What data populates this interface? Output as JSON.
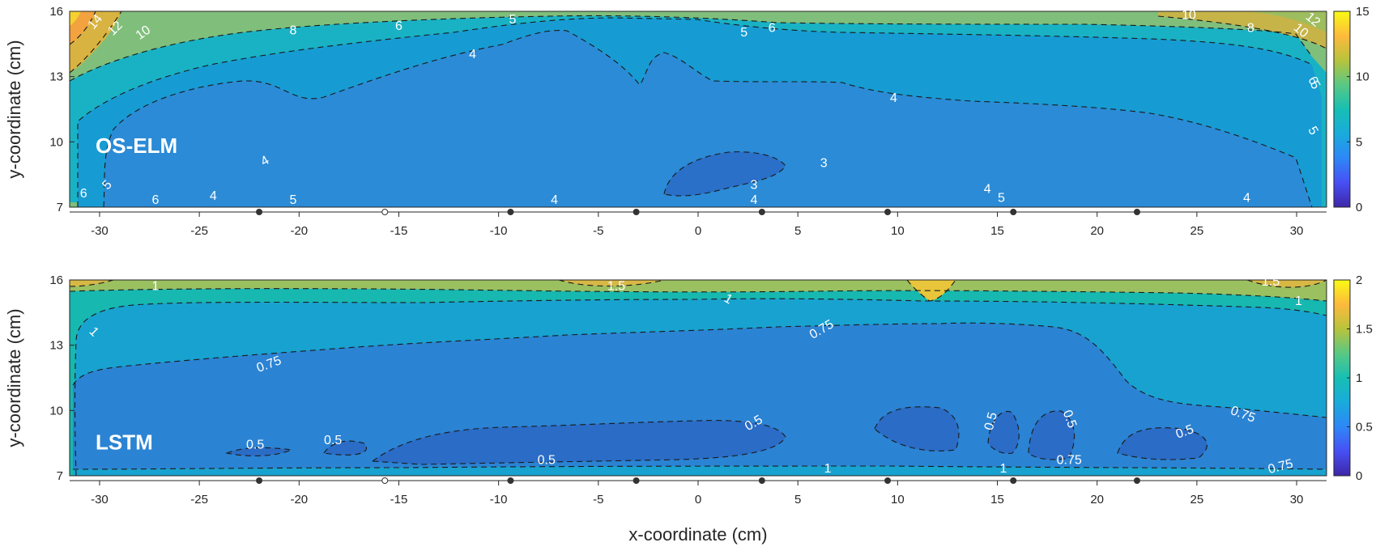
{
  "chart_data": [
    {
      "type": "heatmap",
      "title": "OS-ELM",
      "xlabel": "",
      "ylabel": "y-coordinate (cm)",
      "xlim": [
        -31.5,
        31.5
      ],
      "ylim": [
        7,
        16
      ],
      "x_ticks": [
        "-30",
        "-25",
        "-20",
        "-15",
        "-10",
        "-5",
        "0",
        "5",
        "10",
        "15",
        "20",
        "25",
        "30"
      ],
      "y_ticks": [
        "7",
        "10",
        "13",
        "16"
      ],
      "colorbar": {
        "min": 0,
        "max": 15,
        "ticks": [
          "0",
          "5",
          "10",
          "15"
        ]
      },
      "contour_levels": [
        3,
        4,
        5,
        6,
        8,
        10,
        12,
        14
      ],
      "contour_labels": [
        {
          "text": "14",
          "x": -30.2,
          "y": 15.5,
          "angle": -50
        },
        {
          "text": "12",
          "x": -29.2,
          "y": 15.2,
          "angle": -45
        },
        {
          "text": "10",
          "x": -27.8,
          "y": 15.0,
          "angle": -35
        },
        {
          "text": "8",
          "x": -20.3,
          "y": 15.1,
          "angle": 0
        },
        {
          "text": "6",
          "x": -15.0,
          "y": 15.3,
          "angle": 0
        },
        {
          "text": "5",
          "x": -9.3,
          "y": 15.6,
          "angle": 0
        },
        {
          "text": "4",
          "x": -11.3,
          "y": 14.0,
          "angle": 0
        },
        {
          "text": "5",
          "x": 2.3,
          "y": 15.0,
          "angle": 0
        },
        {
          "text": "6",
          "x": 3.7,
          "y": 15.2,
          "angle": 0
        },
        {
          "text": "10",
          "x": 24.6,
          "y": 15.8,
          "angle": 0
        },
        {
          "text": "8",
          "x": 27.7,
          "y": 15.2,
          "angle": 0
        },
        {
          "text": "10",
          "x": 30.2,
          "y": 15.1,
          "angle": 40
        },
        {
          "text": "12",
          "x": 30.8,
          "y": 15.6,
          "angle": 40
        },
        {
          "text": "4",
          "x": 9.8,
          "y": 12.0,
          "angle": 0
        },
        {
          "text": "6",
          "x": 30.8,
          "y": 12.8,
          "angle": 60
        },
        {
          "text": "5",
          "x": 30.9,
          "y": 12.6,
          "angle": 60
        },
        {
          "text": "5",
          "x": 30.8,
          "y": 10.5,
          "angle": 60
        },
        {
          "text": "3",
          "x": 6.3,
          "y": 9.0,
          "angle": 0
        },
        {
          "text": "3",
          "x": 2.8,
          "y": 8.0,
          "angle": 0
        },
        {
          "text": "4",
          "x": 2.8,
          "y": 7.3,
          "angle": 0
        },
        {
          "text": "4",
          "x": 14.5,
          "y": 7.8,
          "angle": 0
        },
        {
          "text": "5",
          "x": 15.2,
          "y": 7.4,
          "angle": 0
        },
        {
          "text": "4",
          "x": 27.5,
          "y": 7.4,
          "angle": 0
        },
        {
          "text": "4",
          "x": -21.7,
          "y": 9.1,
          "angle": -30
        },
        {
          "text": "5",
          "x": -29.6,
          "y": 8.0,
          "angle": -45
        },
        {
          "text": "6",
          "x": -30.8,
          "y": 7.6,
          "angle": 0
        },
        {
          "text": "6",
          "x": -27.2,
          "y": 7.3,
          "angle": 0
        },
        {
          "text": "4",
          "x": -24.3,
          "y": 7.5,
          "angle": 0
        },
        {
          "text": "5",
          "x": -20.3,
          "y": 7.3,
          "angle": 0
        },
        {
          "text": "4",
          "x": -7.2,
          "y": 7.3,
          "angle": 0
        }
      ],
      "sensor_positions": [
        -22.0,
        -15.7,
        -9.4,
        -3.1,
        3.2,
        9.5,
        15.8,
        22.0
      ],
      "open_sensor": -15.7
    },
    {
      "type": "heatmap",
      "title": "LSTM",
      "xlabel": "x-coordinate (cm)",
      "ylabel": "y-coordinate (cm)",
      "xlim": [
        -31.5,
        31.5
      ],
      "ylim": [
        7,
        16
      ],
      "x_ticks": [
        "-30",
        "-25",
        "-20",
        "-15",
        "-10",
        "-5",
        "0",
        "5",
        "10",
        "15",
        "20",
        "25",
        "30"
      ],
      "y_ticks": [
        "7",
        "10",
        "13",
        "16"
      ],
      "colorbar": {
        "min": 0,
        "max": 2,
        "ticks": [
          "0",
          "0.5",
          "1",
          "1.5",
          "2"
        ]
      },
      "contour_levels": [
        0.5,
        0.75,
        1,
        1.5
      ],
      "contour_labels": [
        {
          "text": "1",
          "x": -27.2,
          "y": 15.7,
          "angle": 0
        },
        {
          "text": "1",
          "x": -30.3,
          "y": 13.6,
          "angle": 45
        },
        {
          "text": "1.5",
          "x": -4.1,
          "y": 15.7,
          "angle": 0
        },
        {
          "text": "1",
          "x": 1.5,
          "y": 15.1,
          "angle": 30
        },
        {
          "text": "1.5",
          "x": 28.7,
          "y": 15.9,
          "angle": 0
        },
        {
          "text": "1",
          "x": 30.1,
          "y": 15.0,
          "angle": 0
        },
        {
          "text": "0.75",
          "x": -21.5,
          "y": 12.1,
          "angle": -20
        },
        {
          "text": "0.75",
          "x": 6.2,
          "y": 13.7,
          "angle": -30
        },
        {
          "text": "0.75",
          "x": 27.3,
          "y": 9.8,
          "angle": 20
        },
        {
          "text": "0.5",
          "x": -22.2,
          "y": 8.4,
          "angle": 0
        },
        {
          "text": "0.5",
          "x": -18.3,
          "y": 8.6,
          "angle": 0
        },
        {
          "text": "0.5",
          "x": -7.6,
          "y": 7.7,
          "angle": 0
        },
        {
          "text": "0.5",
          "x": 2.8,
          "y": 9.4,
          "angle": -30
        },
        {
          "text": "0.5",
          "x": 14.7,
          "y": 9.5,
          "angle": -75
        },
        {
          "text": "0.5",
          "x": 18.6,
          "y": 9.6,
          "angle": 70
        },
        {
          "text": "0.5",
          "x": 24.4,
          "y": 9.0,
          "angle": -20
        },
        {
          "text": "0.75",
          "x": 18.6,
          "y": 7.7,
          "angle": 0
        },
        {
          "text": "1",
          "x": 6.5,
          "y": 7.3,
          "angle": 0
        },
        {
          "text": "1",
          "x": 15.3,
          "y": 7.3,
          "angle": 0
        },
        {
          "text": "0.75",
          "x": 29.2,
          "y": 7.4,
          "angle": -15
        }
      ],
      "sensor_positions": [
        -22.0,
        -15.7,
        -9.4,
        -3.1,
        3.2,
        9.5,
        15.8,
        22.0
      ],
      "open_sensor": -15.7
    }
  ]
}
